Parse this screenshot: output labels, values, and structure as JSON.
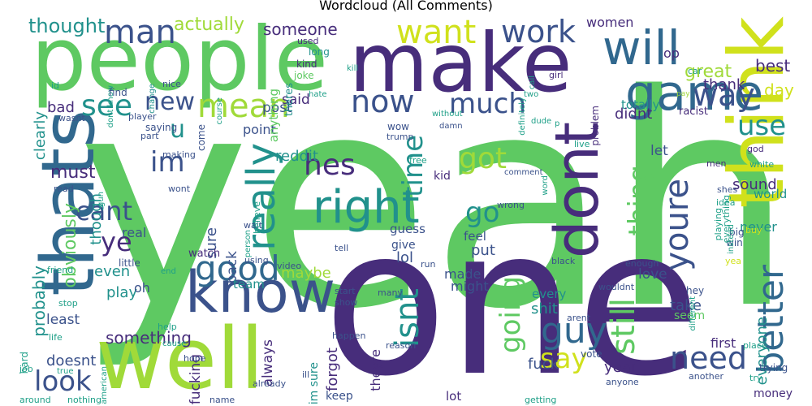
{
  "title": "Wordcloud (All Comments)",
  "palette": {
    "dark_purple": "#472d7b",
    "indigo": "#3b528b",
    "blue": "#31688e",
    "teal": "#21918c",
    "sea": "#1fa088",
    "green": "#5ec962",
    "lime": "#a0da39",
    "yellow": "#d0e11c"
  },
  "words": [
    {
      "text": "yeah",
      "color": "#5ec962"
    },
    {
      "text": "one",
      "color": "#472d7b"
    },
    {
      "text": "people",
      "color": "#5ec962"
    },
    {
      "text": "make",
      "color": "#472d7b"
    },
    {
      "text": "think",
      "color": "#d0e11c"
    },
    {
      "text": "well",
      "color": "#a0da39"
    },
    {
      "text": "know",
      "color": "#3b528b"
    },
    {
      "text": "thats",
      "color": "#31688e"
    },
    {
      "text": "will",
      "color": "#31688e"
    },
    {
      "text": "game",
      "color": "#31688e"
    },
    {
      "text": "dont",
      "color": "#472d7b"
    },
    {
      "text": "right",
      "color": "#21918c"
    },
    {
      "text": "good",
      "color": "#31688e"
    },
    {
      "text": "guy",
      "color": "#31688e"
    },
    {
      "text": "better",
      "color": "#31688e"
    },
    {
      "text": "need",
      "color": "#3b528b"
    },
    {
      "text": "say",
      "color": "#d0e11c"
    },
    {
      "text": "really",
      "color": "#21918c"
    },
    {
      "text": "look",
      "color": "#3b528b"
    },
    {
      "text": "youre",
      "color": "#3b528b"
    },
    {
      "text": "still",
      "color": "#5ec962"
    },
    {
      "text": "isnt",
      "color": "#21918c"
    },
    {
      "text": "man",
      "color": "#3b528b"
    },
    {
      "text": "mean",
      "color": "#a0da39"
    },
    {
      "text": "want",
      "color": "#d0e11c"
    },
    {
      "text": "work",
      "color": "#3b528b"
    },
    {
      "text": "way",
      "color": "#3b528b"
    },
    {
      "text": "now",
      "color": "#3b528b"
    },
    {
      "text": "much",
      "color": "#3b528b"
    },
    {
      "text": "see",
      "color": "#21918c"
    },
    {
      "text": "new",
      "color": "#3b528b"
    },
    {
      "text": "im",
      "color": "#3b528b"
    },
    {
      "text": "hes",
      "color": "#472d7b"
    },
    {
      "text": "got",
      "color": "#a0da39"
    },
    {
      "text": "time",
      "color": "#21918c"
    },
    {
      "text": "go",
      "color": "#21918c"
    },
    {
      "text": "cant",
      "color": "#3b528b"
    },
    {
      "text": "ye",
      "color": "#472d7b"
    },
    {
      "text": "thing",
      "color": "#5ec962"
    },
    {
      "text": "use",
      "color": "#21918c"
    },
    {
      "text": "going",
      "color": "#5ec962"
    },
    {
      "text": "u",
      "color": "#21918c"
    },
    {
      "text": "thought",
      "color": "#21918c"
    },
    {
      "text": "actually",
      "color": "#a0da39"
    },
    {
      "text": "someone",
      "color": "#472d7b"
    },
    {
      "text": "women",
      "color": "#472d7b"
    },
    {
      "text": "great",
      "color": "#a0da39"
    },
    {
      "text": "thank",
      "color": "#472d7b"
    },
    {
      "text": "op",
      "color": "#472d7b"
    },
    {
      "text": "best",
      "color": "#472d7b"
    },
    {
      "text": "day",
      "color": "#d0e11c"
    },
    {
      "text": "totally",
      "color": "#21918c"
    },
    {
      "text": "bad",
      "color": "#472d7b"
    },
    {
      "text": "obviously",
      "color": "#5ec962"
    },
    {
      "text": "clearly",
      "color": "#21918c"
    },
    {
      "text": "must",
      "color": "#472d7b"
    },
    {
      "text": "though",
      "color": "#21918c"
    },
    {
      "text": "didnt",
      "color": "#472d7b"
    },
    {
      "text": "post",
      "color": "#3b528b"
    },
    {
      "text": "said",
      "color": "#472d7b"
    },
    {
      "text": "point",
      "color": "#3b528b"
    },
    {
      "text": "reddit",
      "color": "#21918c"
    },
    {
      "text": "let",
      "color": "#3b528b"
    },
    {
      "text": "sound",
      "color": "#472d7b"
    },
    {
      "text": "kid",
      "color": "#472d7b"
    },
    {
      "text": "sure",
      "color": "#3b528b"
    },
    {
      "text": "back",
      "color": "#3b528b"
    },
    {
      "text": "guess",
      "color": "#3b528b"
    },
    {
      "text": "give",
      "color": "#3b528b"
    },
    {
      "text": "feel",
      "color": "#3b528b"
    },
    {
      "text": "put",
      "color": "#3b528b"
    },
    {
      "text": "never",
      "color": "#21918c"
    },
    {
      "text": "world",
      "color": "#21918c"
    },
    {
      "text": "probably",
      "color": "#21918c"
    },
    {
      "text": "real",
      "color": "#3b528b"
    },
    {
      "text": "even",
      "color": "#21918c"
    },
    {
      "text": "play",
      "color": "#21918c"
    },
    {
      "text": "oh",
      "color": "#3b528b"
    },
    {
      "text": "maybe",
      "color": "#a0da39"
    },
    {
      "text": "lol",
      "color": "#3b528b"
    },
    {
      "text": "made",
      "color": "#3b528b"
    },
    {
      "text": "might",
      "color": "#3b528b"
    },
    {
      "text": "love",
      "color": "#3b528b"
    },
    {
      "text": "take",
      "color": "#3b528b"
    },
    {
      "text": "every",
      "color": "#21918c"
    },
    {
      "text": "shit",
      "color": "#21918c"
    },
    {
      "text": "everyone",
      "color": "#21918c"
    },
    {
      "text": "something",
      "color": "#472d7b"
    },
    {
      "text": "least",
      "color": "#3b528b"
    },
    {
      "text": "always",
      "color": "#472d7b"
    },
    {
      "text": "forgot",
      "color": "#472d7b"
    },
    {
      "text": "theyre",
      "color": "#472d7b"
    },
    {
      "text": "fucking",
      "color": "#472d7b"
    },
    {
      "text": "doesnt",
      "color": "#3b528b"
    },
    {
      "text": "fuck",
      "color": "#3b528b"
    },
    {
      "text": "year",
      "color": "#472d7b"
    },
    {
      "text": "first",
      "color": "#472d7b"
    },
    {
      "text": "seem",
      "color": "#5ec962"
    },
    {
      "text": "money",
      "color": "#472d7b"
    },
    {
      "text": "im sure",
      "color": "#21918c"
    },
    {
      "text": "lot",
      "color": "#472d7b"
    },
    {
      "text": "keep",
      "color": "#3b528b"
    },
    {
      "text": "team",
      "color": "#21918c"
    },
    {
      "text": "watch",
      "color": "#472d7b"
    },
    {
      "text": "anything",
      "color": "#5ec962"
    },
    {
      "text": "theres",
      "color": "#21918c"
    },
    {
      "text": "kind",
      "color": "#472d7b"
    },
    {
      "text": "joke",
      "color": "#5ec962"
    },
    {
      "text": "used",
      "color": "#472d7b"
    },
    {
      "text": "long",
      "color": "#21918c"
    },
    {
      "text": "kill",
      "color": "#1fa088"
    },
    {
      "text": "hate",
      "color": "#1fa088"
    },
    {
      "text": "nice",
      "color": "#3b528b"
    },
    {
      "text": "dont know",
      "color": "#1fa088"
    },
    {
      "text": "change",
      "color": "#21918c"
    },
    {
      "text": "id",
      "color": "#1fa088"
    },
    {
      "text": "find",
      "color": "#3b528b"
    },
    {
      "text": "wasnt",
      "color": "#3b528b"
    },
    {
      "text": "player",
      "color": "#3b528b"
    },
    {
      "text": "saying",
      "color": "#3b528b"
    },
    {
      "text": "part",
      "color": "#3b528b"
    },
    {
      "text": "making",
      "color": "#3b528b"
    },
    {
      "text": "course",
      "color": "#1fa088"
    },
    {
      "text": "come",
      "color": "#3b528b"
    },
    {
      "text": "without",
      "color": "#1fa088"
    },
    {
      "text": "damn",
      "color": "#3b528b"
    },
    {
      "text": "wow",
      "color": "#3b528b"
    },
    {
      "text": "trump",
      "color": "#3b528b"
    },
    {
      "text": "two",
      "color": "#1fa088"
    },
    {
      "text": "call",
      "color": "#1fa088"
    },
    {
      "text": "girl",
      "color": "#472d7b"
    },
    {
      "text": "problem",
      "color": "#472d7b"
    },
    {
      "text": "definitely",
      "color": "#1fa088"
    },
    {
      "text": "dude",
      "color": "#1fa088"
    },
    {
      "text": "racist",
      "color": "#472d7b"
    },
    {
      "text": "pay",
      "color": "#a0da39"
    },
    {
      "text": "car",
      "color": "#1fa088"
    },
    {
      "text": "god",
      "color": "#472d7b"
    },
    {
      "text": "white",
      "color": "#1fa088"
    },
    {
      "text": "men",
      "color": "#472d7b"
    },
    {
      "text": "shes",
      "color": "#3b528b"
    },
    {
      "text": "idea",
      "color": "#1fa088"
    },
    {
      "text": "big",
      "color": "#3b528b"
    },
    {
      "text": "win",
      "color": "#3b528b"
    },
    {
      "text": "buy",
      "color": "#d0e11c"
    },
    {
      "text": "yea",
      "color": "#d0e11c"
    },
    {
      "text": "everything",
      "color": "#1fa088"
    },
    {
      "text": "playing",
      "color": "#1fa088"
    },
    {
      "text": "instead",
      "color": "#1fa088"
    },
    {
      "text": "black",
      "color": "#3b528b"
    },
    {
      "text": "enough",
      "color": "#3b528b"
    },
    {
      "text": "wouldnt",
      "color": "#3b528b"
    },
    {
      "text": "hey",
      "color": "#3b528b"
    },
    {
      "text": "different",
      "color": "#1fa088"
    },
    {
      "text": "arent",
      "color": "#3b528b"
    },
    {
      "text": "many",
      "color": "#3b528b"
    },
    {
      "text": "reason",
      "color": "#3b528b"
    },
    {
      "text": "vote",
      "color": "#3b528b"
    },
    {
      "text": "anyone",
      "color": "#3b528b"
    },
    {
      "text": "another",
      "color": "#3b528b"
    },
    {
      "text": "place",
      "color": "#1fa088"
    },
    {
      "text": "try",
      "color": "#1fa088"
    },
    {
      "text": "trying",
      "color": "#3b528b"
    },
    {
      "text": "getting",
      "color": "#1fa088"
    },
    {
      "text": "happen",
      "color": "#3b528b"
    },
    {
      "text": "already",
      "color": "#3b528b"
    },
    {
      "text": "ill",
      "color": "#3b528b"
    },
    {
      "text": "start",
      "color": "#3b528b"
    },
    {
      "text": "show",
      "color": "#3b528b"
    },
    {
      "text": "run",
      "color": "#3b528b"
    },
    {
      "text": "video",
      "color": "#3b528b"
    },
    {
      "text": "using",
      "color": "#3b528b"
    },
    {
      "text": "wait",
      "color": "#3b528b"
    },
    {
      "text": "tell",
      "color": "#3b528b"
    },
    {
      "text": "wrong",
      "color": "#3b528b"
    },
    {
      "text": "comment",
      "color": "#3b528b"
    },
    {
      "text": "word",
      "color": "#1fa088"
    },
    {
      "text": "free",
      "color": "#1fa088"
    },
    {
      "text": "live",
      "color": "#1fa088"
    },
    {
      "text": "believe",
      "color": "#1fa088"
    },
    {
      "text": "person",
      "color": "#1fa088"
    },
    {
      "text": "wont",
      "color": "#3b528b"
    },
    {
      "text": "read",
      "color": "#3b528b"
    },
    {
      "text": "gun",
      "color": "#1fa088"
    },
    {
      "text": "little",
      "color": "#3b528b"
    },
    {
      "text": "end",
      "color": "#1fa088"
    },
    {
      "text": "friend",
      "color": "#1fa088"
    },
    {
      "text": "stop",
      "color": "#1fa088"
    },
    {
      "text": "help",
      "color": "#1fa088"
    },
    {
      "text": "cause",
      "color": "#1fa088"
    },
    {
      "text": "hope",
      "color": "#3b528b"
    },
    {
      "text": "name",
      "color": "#3b528b"
    },
    {
      "text": "american",
      "color": "#1fa088"
    },
    {
      "text": "nothing",
      "color": "#1fa088"
    },
    {
      "text": "around",
      "color": "#1fa088"
    },
    {
      "text": "job",
      "color": "#1fa088"
    },
    {
      "text": "true",
      "color": "#1fa088"
    },
    {
      "text": "hard",
      "color": "#1fa088"
    },
    {
      "text": "life",
      "color": "#1fa088"
    },
    {
      "text": "p",
      "color": "#1fa088"
    }
  ]
}
